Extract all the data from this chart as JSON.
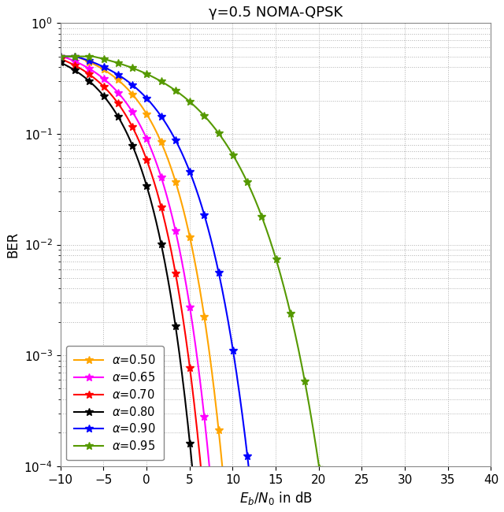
{
  "title": "γ=0.5 NOMA-QPSK",
  "xlabel": "$E_b/N_0$ in dB",
  "ylabel": "BER",
  "xlim": [
    -10,
    40
  ],
  "ylim": [
    0.0001,
    1.0
  ],
  "series": [
    {
      "alpha": 0.5,
      "color": "#FFA500",
      "label": "α=0.50",
      "snr_shift_db": 0.0,
      "steepness": 1.0
    },
    {
      "alpha": 0.65,
      "color": "#FF00FF",
      "label": "α=0.65",
      "snr_shift_db": -1.5,
      "steepness": 1.0
    },
    {
      "alpha": 0.7,
      "color": "#FF0000",
      "label": "α=0.70",
      "snr_shift_db": -2.5,
      "steepness": 1.0
    },
    {
      "alpha": 0.8,
      "color": "#000000",
      "label": "α=0.80",
      "snr_shift_db": -3.5,
      "steepness": 1.0
    },
    {
      "alpha": 0.9,
      "color": "#0000FF",
      "label": "α=0.90",
      "snr_shift_db": 1.5,
      "steepness": 0.85
    },
    {
      "alpha": 0.95,
      "color": "#559900",
      "label": "α=0.95",
      "snr_shift_db": 6.5,
      "steepness": 0.65
    }
  ],
  "background_color": "#ffffff",
  "grid_color": "#b0b0b0",
  "title_fontsize": 13,
  "label_fontsize": 12,
  "tick_fontsize": 11,
  "legend_fontsize": 10.5,
  "marker_every": 20,
  "marker_size": 7,
  "line_width": 1.5
}
